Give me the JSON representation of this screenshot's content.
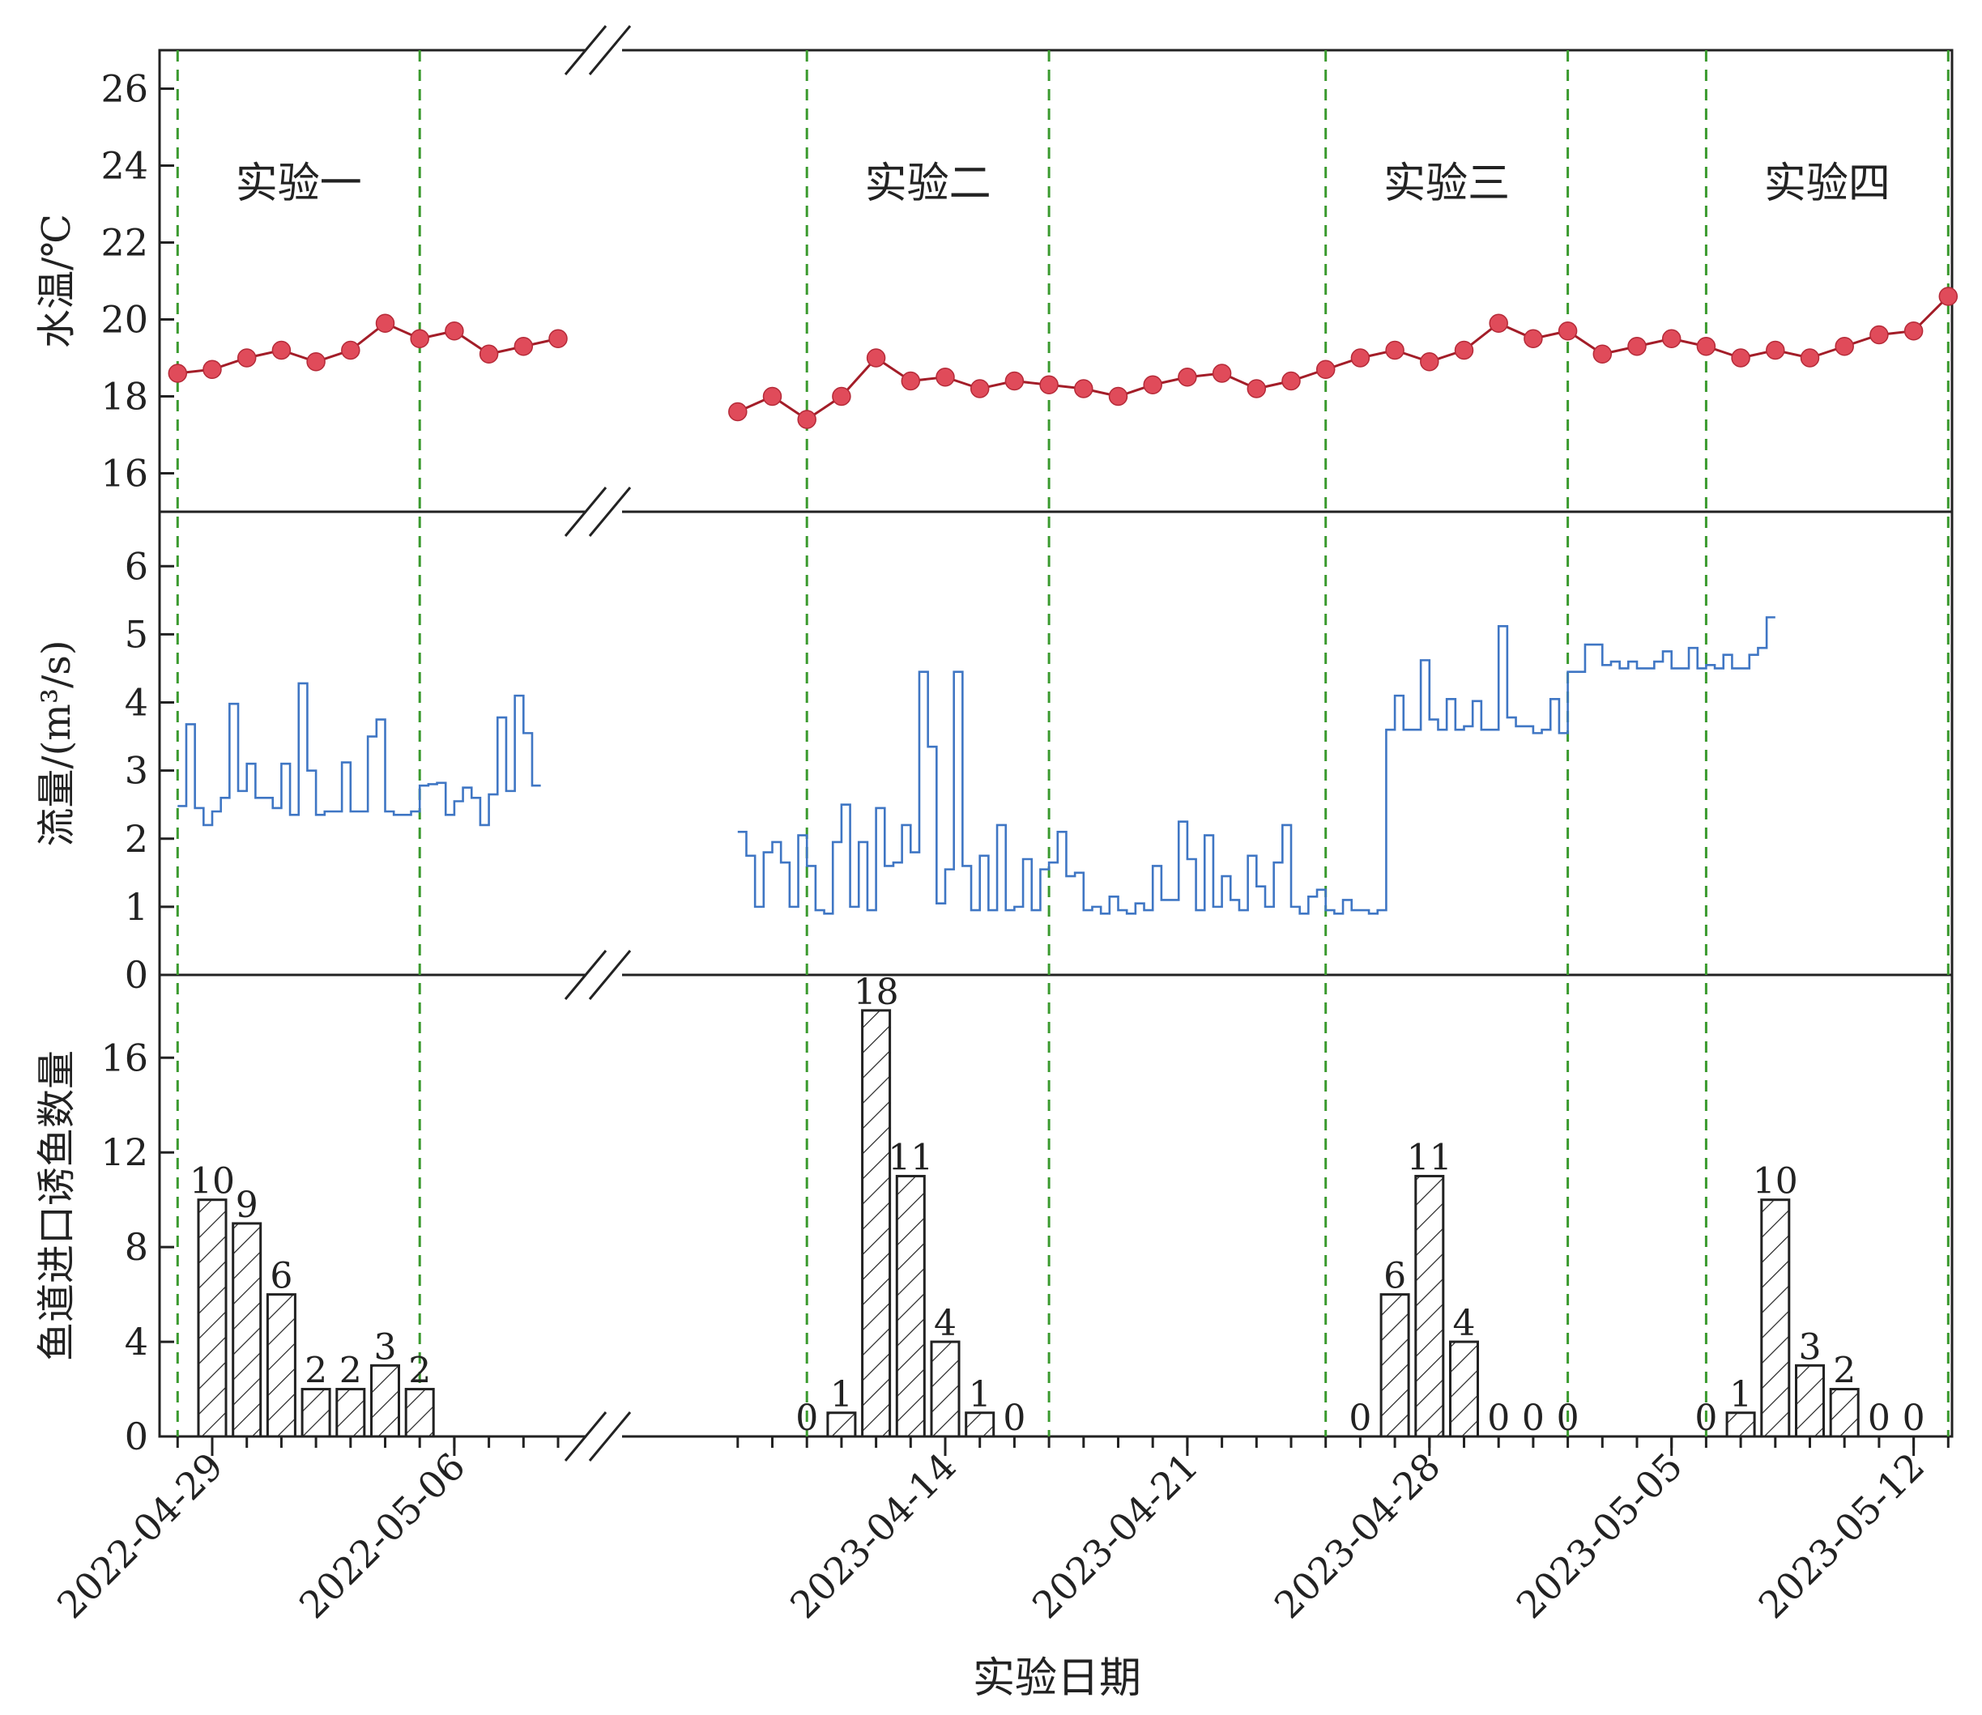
{
  "chart_data": {
    "type": "mixed",
    "xlabel": "实验日期",
    "x_tick_labels": [
      "2022-04-29",
      "2022-05-06",
      "2023-04-14",
      "2023-04-21",
      "2023-04-28",
      "2023-05-05",
      "2023-05-12"
    ],
    "experiments": [
      "实验一",
      "实验二",
      "实验三",
      "实验四"
    ],
    "experiment_boundaries": [
      "2022-04-28",
      "2022-05-05",
      "2023-04-10",
      "2023-04-17",
      "2023-04-25",
      "2023-05-02",
      "2023-05-06",
      "2023-05-13"
    ],
    "panels": [
      {
        "name": "temperature",
        "type": "line",
        "ylabel": "水温/℃",
        "ylim": [
          15,
          27
        ],
        "yticks": [
          16,
          18,
          20,
          22,
          24,
          26
        ],
        "segments": [
          {
            "x": [
              "2022-04-28",
              "2022-04-29",
              "2022-04-30",
              "2022-05-01",
              "2022-05-02",
              "2022-05-03",
              "2022-05-04",
              "2022-05-05",
              "2022-05-06",
              "2022-05-07",
              "2022-05-08",
              "2022-05-09"
            ],
            "y": [
              18.6,
              18.7,
              19.0,
              19.2,
              18.9,
              19.2,
              19.9,
              19.5,
              19.7,
              19.1,
              19.3,
              19.5
            ]
          },
          {
            "x": [
              "2023-04-08",
              "2023-04-09",
              "2023-04-10",
              "2023-04-11",
              "2023-04-12",
              "2023-04-13",
              "2023-04-14",
              "2023-04-15",
              "2023-04-16",
              "2023-04-17",
              "2023-04-18",
              "2023-04-19",
              "2023-04-20",
              "2023-04-21",
              "2023-04-22",
              "2023-04-23",
              "2023-04-24",
              "2023-04-25",
              "2023-04-26",
              "2023-04-27",
              "2023-04-28",
              "2023-04-29",
              "2023-04-30",
              "2023-05-01",
              "2023-05-02",
              "2023-05-03",
              "2023-05-04",
              "2023-05-05",
              "2023-05-06",
              "2023-05-07",
              "2023-05-08",
              "2023-05-09",
              "2023-05-10",
              "2023-05-11",
              "2023-05-12",
              "2023-05-13"
            ],
            "y": [
              17.6,
              18.0,
              17.4,
              18.0,
              19.0,
              18.4,
              18.5,
              18.2,
              18.4,
              18.3,
              18.2,
              18.0,
              18.3,
              18.5,
              18.6,
              18.2,
              18.4,
              18.7,
              19.0,
              19.2,
              18.9,
              19.2,
              19.9,
              19.5,
              19.7,
              19.1,
              19.3,
              19.5,
              19.3,
              19.0,
              19.2,
              19.0,
              19.3,
              19.6,
              19.7,
              20.6
            ]
          }
        ]
      },
      {
        "name": "flow",
        "type": "step",
        "ylabel": "流量/(m³/s)",
        "ylim": [
          0,
          6.8
        ],
        "yticks": [
          0,
          1,
          2,
          3,
          4,
          5,
          6
        ],
        "segments": [
          {
            "x_start": "2022-04-28",
            "step_days": 0.25,
            "y": [
              2.48,
              3.68,
              2.45,
              2.2,
              2.4,
              2.6,
              3.98,
              2.7,
              3.1,
              2.6,
              2.6,
              2.45,
              3.1,
              2.35,
              4.28,
              3.0,
              2.35,
              2.4,
              2.4,
              3.12,
              2.4,
              2.4,
              3.5,
              3.75,
              2.4,
              2.35,
              2.35,
              2.4,
              2.78,
              2.8,
              2.82,
              2.35,
              2.55,
              2.75,
              2.6,
              2.2,
              2.65,
              3.78,
              2.7,
              4.1,
              3.55,
              2.78
            ]
          },
          {
            "x_start": "2023-04-08",
            "step_days": 0.25,
            "y": [
              2.1,
              1.75,
              1.0,
              1.8,
              1.95,
              1.65,
              1.0,
              2.05,
              1.6,
              0.95,
              0.9,
              1.95,
              2.5,
              1.0,
              1.95,
              0.95,
              2.45,
              1.6,
              1.65,
              2.2,
              1.8,
              4.45,
              3.35,
              1.05,
              1.55,
              4.45,
              1.6,
              0.95,
              1.75,
              0.95,
              2.2,
              0.95,
              1.0,
              1.7,
              0.95,
              1.55,
              1.65,
              2.1,
              1.45,
              1.5,
              0.95,
              1.0,
              0.9,
              1.15,
              0.95,
              0.9,
              1.05,
              0.95,
              1.6,
              1.1,
              1.1,
              2.25,
              1.7,
              0.95,
              2.05,
              1.0,
              1.45,
              1.1,
              0.95,
              1.75,
              1.3,
              1.0,
              1.65,
              2.2,
              1.0,
              0.9,
              1.15,
              1.25,
              0.95,
              0.9,
              1.1,
              0.95,
              0.95,
              0.9,
              0.95,
              3.6,
              4.1,
              3.6,
              3.6,
              4.62,
              3.75,
              3.6,
              4.05,
              3.6,
              3.65,
              4.02,
              3.6,
              3.6,
              5.12,
              3.78,
              3.65,
              3.65,
              3.55,
              3.6,
              4.05,
              3.55,
              4.45,
              4.45,
              4.85,
              4.85,
              4.55,
              4.6,
              4.5,
              4.6,
              4.5,
              4.5,
              4.6,
              4.75,
              4.5,
              4.5,
              4.8,
              4.5,
              4.55,
              4.5,
              4.7,
              4.5,
              4.5,
              4.7,
              4.8,
              5.25
            ]
          }
        ]
      },
      {
        "name": "fish_count",
        "type": "bar",
        "ylabel": "鱼道进口诱鱼数量",
        "ylim": [
          0,
          19.5
        ],
        "yticks": [
          0,
          4,
          8,
          12,
          16
        ],
        "x": [
          "2022-04-29",
          "2022-04-30",
          "2022-05-01",
          "2022-05-02",
          "2022-05-03",
          "2022-05-04",
          "2022-05-05",
          "2023-04-10",
          "2023-04-11",
          "2023-04-12",
          "2023-04-13",
          "2023-04-14",
          "2023-04-15",
          "2023-04-16",
          "2023-04-26",
          "2023-04-27",
          "2023-04-28",
          "2023-04-29",
          "2023-04-30",
          "2023-05-01",
          "2023-05-02",
          "2023-05-06",
          "2023-05-07",
          "2023-05-08",
          "2023-05-09",
          "2023-05-10",
          "2023-05-11",
          "2023-05-12"
        ],
        "values": [
          10,
          9,
          6,
          2,
          2,
          3,
          2,
          0,
          1,
          18,
          11,
          4,
          1,
          0,
          0,
          6,
          11,
          4,
          0,
          0,
          0,
          0,
          1,
          10,
          3,
          2,
          0,
          0
        ],
        "value_labels": [
          "10",
          "9",
          "6",
          "2",
          "2",
          "3",
          "2",
          "0",
          "1",
          "18",
          "11",
          "4",
          "1",
          "0",
          "0",
          "6",
          "11",
          "4",
          "0",
          "0",
          "0",
          "0",
          "1",
          "10",
          "3",
          "2",
          "0",
          "0"
        ]
      }
    ],
    "grid": false
  }
}
